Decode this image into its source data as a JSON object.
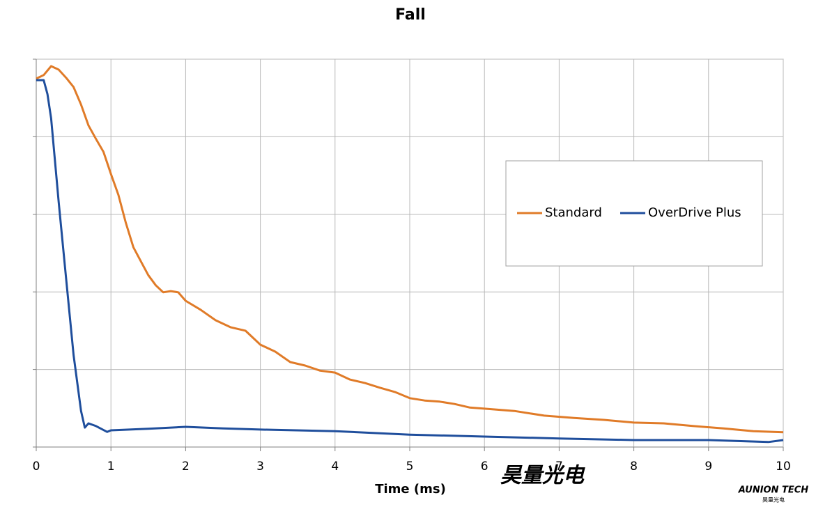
{
  "chart_data": {
    "type": "line",
    "title": "Fall",
    "x_label": "Time (ms)",
    "xlim": [
      0,
      10
    ],
    "xticks": [
      0,
      1,
      2,
      3,
      4,
      5,
      6,
      7,
      8,
      9,
      10
    ],
    "ylim": [
      0,
      100
    ],
    "ygrid": [
      0,
      20,
      40,
      60,
      80,
      100
    ],
    "grid": true,
    "legend": "right",
    "watermark": "AUNION TECH",
    "watermark_cn": "昊量光电",
    "series": [
      {
        "name": "Standard",
        "color": "#e07b28",
        "x": [
          0,
          0.1,
          0.2,
          0.3,
          0.4,
          0.5,
          0.6,
          0.7,
          0.8,
          0.9,
          1.0,
          1.1,
          1.2,
          1.3,
          1.4,
          1.5,
          1.6,
          1.7,
          1.8,
          1.9,
          2.0,
          2.2,
          2.4,
          2.6,
          2.8,
          3.0,
          3.2,
          3.4,
          3.6,
          3.8,
          4.0,
          4.2,
          4.4,
          4.6,
          4.8,
          5.0,
          5.2,
          5.4,
          5.6,
          5.8,
          6.0,
          6.4,
          6.8,
          7.2,
          7.6,
          8.0,
          8.4,
          8.8,
          9.2,
          9.6,
          10.0
        ],
        "values": [
          95.0,
          95.9,
          98.2,
          97.3,
          95.2,
          92.8,
          88.3,
          82.9,
          79.4,
          76.1,
          70.4,
          65.0,
          57.8,
          51.5,
          47.9,
          44.3,
          41.7,
          39.9,
          40.2,
          39.9,
          37.7,
          35.4,
          32.7,
          30.9,
          30.0,
          26.4,
          24.6,
          21.9,
          21.0,
          19.7,
          19.2,
          17.4,
          16.5,
          15.3,
          14.2,
          12.6,
          12.0,
          11.7,
          11.1,
          10.2,
          9.9,
          9.3,
          8.1,
          7.5,
          7.0,
          6.3,
          6.1,
          5.4,
          4.8,
          4.1,
          3.8
        ]
      },
      {
        "name": "OverDrive Plus",
        "color": "#1f4e9c",
        "x": [
          0,
          0.1,
          0.15,
          0.2,
          0.3,
          0.4,
          0.5,
          0.6,
          0.65,
          0.7,
          0.8,
          0.95,
          1.0,
          1.5,
          2.0,
          2.5,
          3.0,
          4.0,
          5.0,
          6.0,
          7.0,
          8.0,
          9.0,
          9.8,
          10.0
        ],
        "values": [
          94.6,
          94.6,
          91.0,
          84.7,
          63.2,
          43.4,
          23.7,
          9.3,
          5.0,
          6.1,
          5.4,
          3.9,
          4.3,
          4.7,
          5.2,
          4.8,
          4.5,
          4.1,
          3.2,
          2.7,
          2.2,
          1.8,
          1.8,
          1.3,
          1.8
        ]
      }
    ]
  }
}
